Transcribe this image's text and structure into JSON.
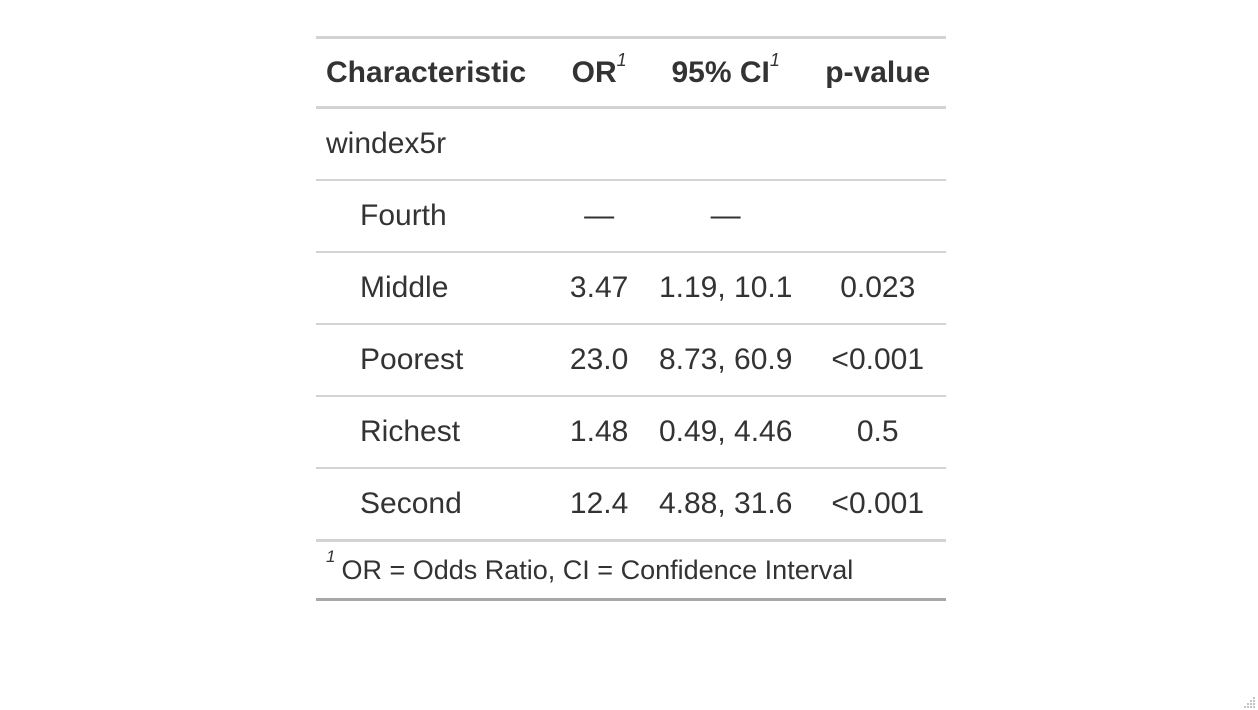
{
  "table": {
    "headers": {
      "characteristic": "Characteristic",
      "or": "OR",
      "or_note": "1",
      "ci": "95% CI",
      "ci_note": "1",
      "pvalue": "p-value"
    },
    "group_label": "windex5r",
    "rows": [
      {
        "label": "Fourth",
        "or": "—",
        "ci": "—",
        "p": ""
      },
      {
        "label": "Middle",
        "or": "3.47",
        "ci": "1.19, 10.1",
        "p": "0.023"
      },
      {
        "label": "Poorest",
        "or": "23.0",
        "ci": "8.73, 60.9",
        "p": "<0.001"
      },
      {
        "label": "Richest",
        "or": "1.48",
        "ci": "0.49, 4.46",
        "p": "0.5"
      },
      {
        "label": "Second",
        "or": "12.4",
        "ci": "4.88, 31.6",
        "p": "<0.001"
      }
    ],
    "footnote_marker": "1",
    "footnote": "OR = Odds Ratio, CI = Confidence Interval"
  }
}
